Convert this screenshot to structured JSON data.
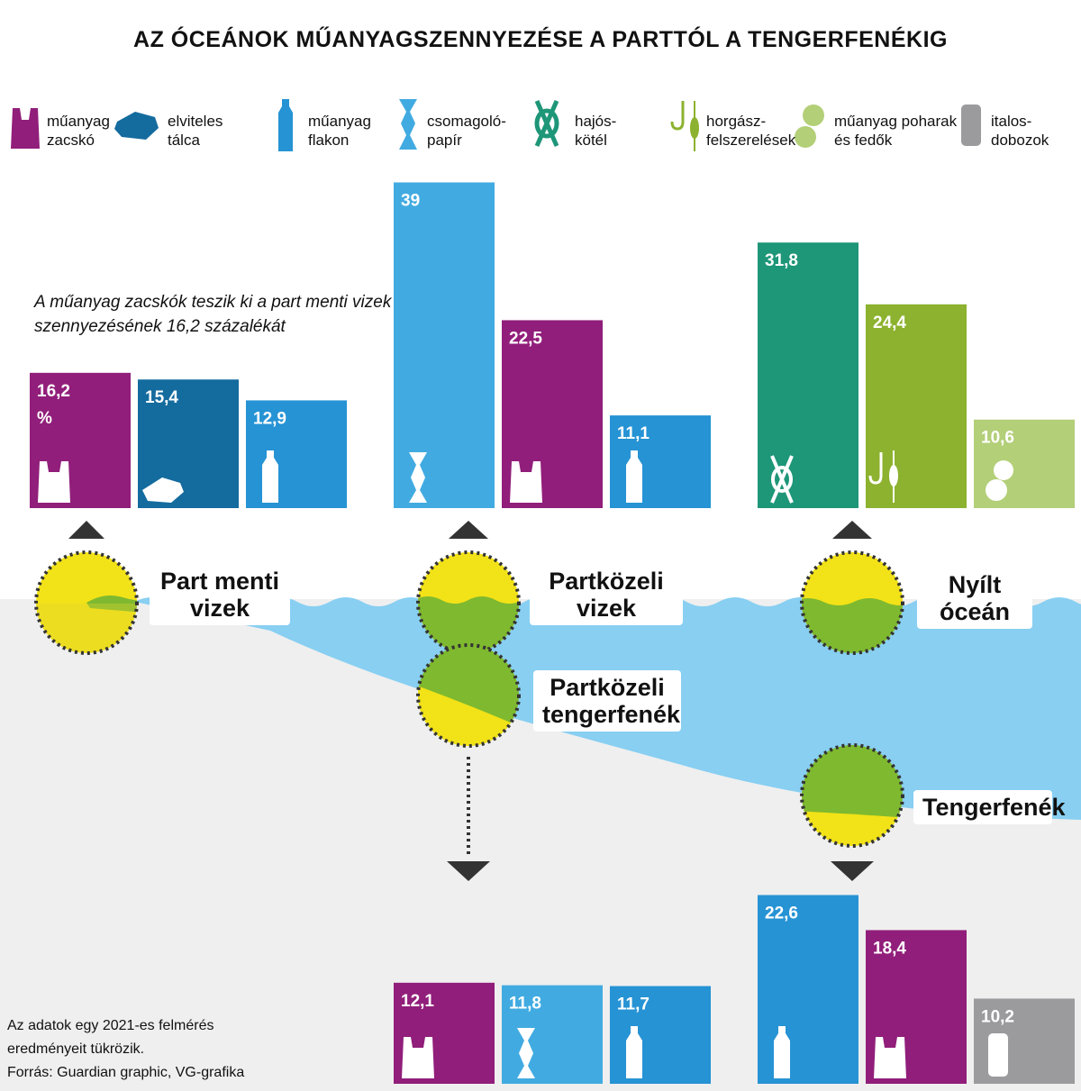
{
  "title": "AZ ÓCEÁNOK MŰANYAGSZENNYEZÉSE A PARTTÓL A TENGERFENÉKIG",
  "colors": {
    "zacsko": "#911e7a",
    "talca": "#146b9e",
    "flakon": "#2693d4",
    "csomagolo": "#41abe1",
    "kotel": "#1e9678",
    "horgasz": "#8cb22f",
    "pohar": "#b3cf78",
    "doboz": "#9b9b9e",
    "water": "#88cff2",
    "seabed": "#efefef",
    "lens_yellow": "#f2e218",
    "lens_green": "#7fb92f"
  },
  "legend": [
    {
      "key": "zacsko",
      "icon": "plastic-bag-icon",
      "line1": "műanyag",
      "line2": "zacskó"
    },
    {
      "key": "talca",
      "icon": "takeaway-tray-icon",
      "line1": "elviteles",
      "line2": "tálca"
    },
    {
      "key": "flakon",
      "icon": "bottle-icon",
      "line1": "műanyag",
      "line2": "flakon"
    },
    {
      "key": "csomagolo",
      "icon": "wrapper-icon",
      "line1": "csomagoló-",
      "line2": "papír"
    },
    {
      "key": "kotel",
      "icon": "rope-knot-icon",
      "line1": "hajós-",
      "line2": "kötél"
    },
    {
      "key": "horgasz",
      "icon": "fishing-hook-icon",
      "line1": "horgász-",
      "line2": "felszerelések"
    },
    {
      "key": "pohar",
      "icon": "cups-lids-icon",
      "line1": "műanyag poharak",
      "line2": "és fedők"
    },
    {
      "key": "doboz",
      "icon": "can-icon",
      "line1": "italos-",
      "line2": "dobozok"
    }
  ],
  "note": {
    "line1": "A műanyag zacskók teszik ki a part menti vizek",
    "line2": "szennyezésének 16,2 százalékát"
  },
  "zones": {
    "part_menti": {
      "line1": "Part menti",
      "line2": "vizek"
    },
    "partkozeli": {
      "line1": "Partközeli",
      "line2": "vizek"
    },
    "nyilt": {
      "line1": "Nyílt",
      "line2": "óceán"
    },
    "partkozeli_fenek": {
      "line1": "Partközeli",
      "line2": "tengerfenék"
    },
    "tengerfenek": {
      "line1": "Tengerfenék"
    }
  },
  "footer": {
    "line1": "Az adatok egy 2021-es felmérés",
    "line2": "eredményeit tükrözik.",
    "line3": "Forrás: Guardian graphic, VG-grafika"
  },
  "chart_data": [
    {
      "type": "bar",
      "group": "Part menti vizek",
      "unit": "%",
      "categories": [
        "műanyag zacskó",
        "elviteles tálca",
        "műanyag flakon"
      ],
      "values": [
        16.2,
        15.4,
        12.9
      ],
      "labels": [
        "16,2",
        "15,4",
        "12,9"
      ],
      "extra_text": "%"
    },
    {
      "type": "bar",
      "group": "Partközeli vizek",
      "categories": [
        "csomagolópapír",
        "műanyag zacskó",
        "műanyag flakon"
      ],
      "values": [
        39,
        22.5,
        11.1
      ],
      "labels": [
        "39",
        "22,5",
        "11,1"
      ]
    },
    {
      "type": "bar",
      "group": "Nyílt óceán",
      "categories": [
        "hajóskötél",
        "horgászfelszerelések",
        "műanyag poharak és fedők"
      ],
      "values": [
        31.8,
        24.4,
        10.6
      ],
      "labels": [
        "31,8",
        "24,4",
        "10,6"
      ]
    },
    {
      "type": "bar",
      "group": "Partközeli tengerfenék",
      "categories": [
        "műanyag zacskó",
        "csomagolópapír",
        "műanyag flakon"
      ],
      "values": [
        12.1,
        11.8,
        11.7
      ],
      "labels": [
        "12,1",
        "11,8",
        "11,7"
      ]
    },
    {
      "type": "bar",
      "group": "Tengerfenék",
      "categories": [
        "műanyag flakon",
        "műanyag zacskó",
        "italosdobozok"
      ],
      "values": [
        22.6,
        18.4,
        10.2
      ],
      "labels": [
        "22,6",
        "18,4",
        "10,2"
      ]
    }
  ]
}
